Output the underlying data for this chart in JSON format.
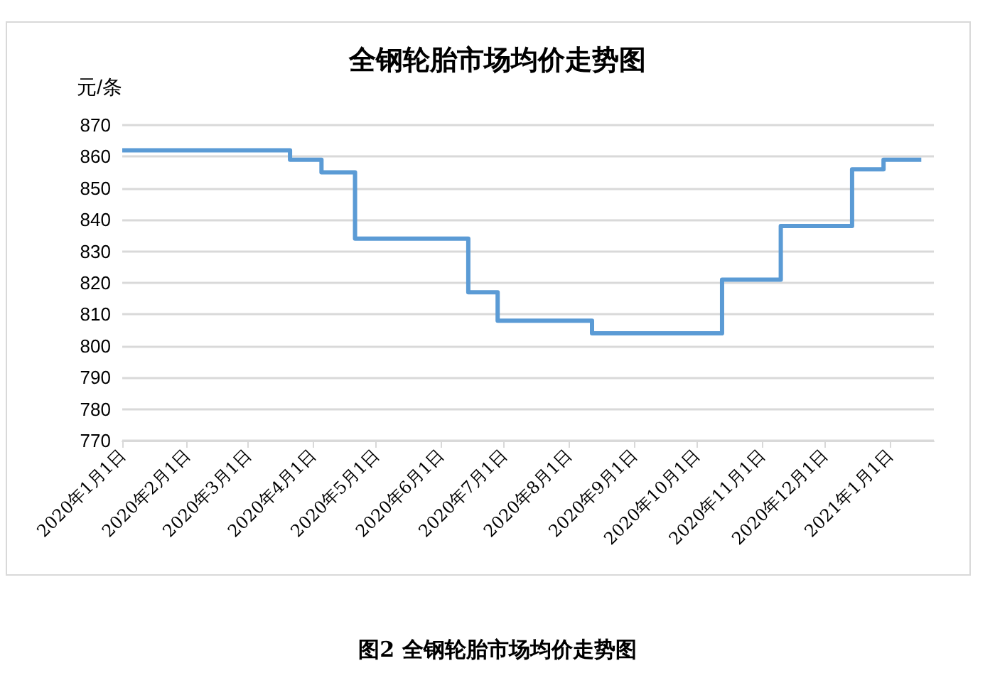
{
  "chart_data": {
    "type": "step",
    "title": "全钢轮胎市场均价走势图",
    "ylabel": "元/条",
    "x": [
      "2020-01-01",
      "2020-03-21",
      "2020-04-05",
      "2020-04-21",
      "2020-06-14",
      "2020-06-28",
      "2020-08-12",
      "2020-10-13",
      "2020-11-10",
      "2020-12-14",
      "2020-12-29",
      "2021-01-16"
    ],
    "values": [
      862,
      859,
      855,
      834,
      817,
      808,
      804,
      821,
      838,
      856,
      859,
      859
    ],
    "color": "#5b9bd5",
    "xlim": [
      "2020-01-01",
      "2021-01-22"
    ],
    "xticks": [
      {
        "value": "2020-01-01",
        "label": "2020年1月1日"
      },
      {
        "value": "2020-02-01",
        "label": "2020年2月1日"
      },
      {
        "value": "2020-03-01",
        "label": "2020年3月1日"
      },
      {
        "value": "2020-04-01",
        "label": "2020年4月1日"
      },
      {
        "value": "2020-05-01",
        "label": "2020年5月1日"
      },
      {
        "value": "2020-06-01",
        "label": "2020年6月1日"
      },
      {
        "value": "2020-07-01",
        "label": "2020年7月1日"
      },
      {
        "value": "2020-08-01",
        "label": "2020年8月1日"
      },
      {
        "value": "2020-09-01",
        "label": "2020年9月1日"
      },
      {
        "value": "2020-10-01",
        "label": "2020年10月1日"
      },
      {
        "value": "2020-11-01",
        "label": "2020年11月1日"
      },
      {
        "value": "2020-12-01",
        "label": "2020年12月1日"
      },
      {
        "value": "2021-01-01",
        "label": "2021年1月1日"
      }
    ],
    "ylim": [
      770,
      870
    ],
    "yticks": [
      770,
      780,
      790,
      800,
      810,
      820,
      830,
      840,
      850,
      860,
      870
    ],
    "grid": "y",
    "line_style": "solid",
    "annotations": [
      "图2 全钢轮胎市场均价走势图"
    ]
  }
}
